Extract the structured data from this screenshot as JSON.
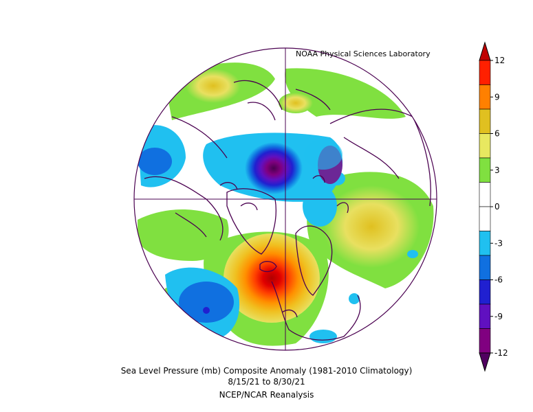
{
  "credit": "NOAA Physical Sciences Laboratory",
  "title": {
    "line1": "Sea Level Pressure (mb) Composite Anomaly (1981-2010 Climatology)",
    "line2": "8/15/21   to 8/30/21",
    "line3": "NCEP/NCAR Reanalysis"
  },
  "colorbar": {
    "ticks": [
      "12",
      "9",
      "6",
      "3",
      "0",
      "-3",
      "-6",
      "-9",
      "-12"
    ],
    "colors": [
      "#c00000",
      "#ff2000",
      "#ff8000",
      "#e0c020",
      "#e8e860",
      "#80e040",
      "#ffffff",
      "#ffffff",
      "#20c0f0",
      "#1070e0",
      "#2020d0",
      "#6010c0",
      "#800080",
      "#500060"
    ]
  },
  "map": {
    "projection": "north-polar-stereographic",
    "positive_color": "#e8e020",
    "negative_color": "#2080e0"
  }
}
